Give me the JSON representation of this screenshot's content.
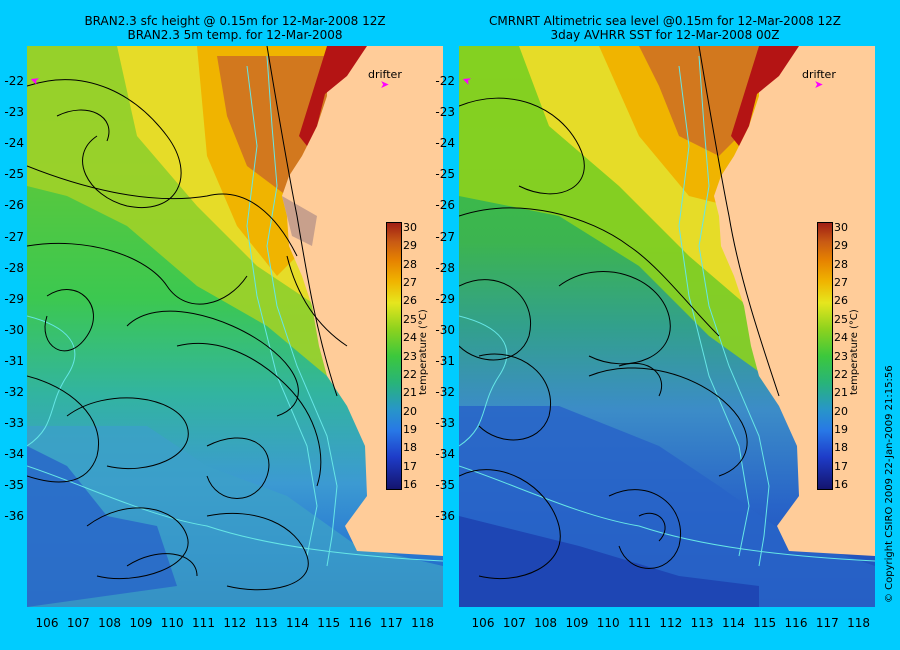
{
  "left_panel": {
    "title_line1": "BRAN2.3 sfc height @ 0.15m for 12-Mar-2008 12Z",
    "title_line2": "BRAN2.3 5m temp. for 12-Mar-2008"
  },
  "right_panel": {
    "title_line1": "CMRNRT Altimetric sea level  @0.15m  for 12-Mar-2008 12Z",
    "title_line2": "3day AVHRR SST for 12-Mar-2008 00Z"
  },
  "latitude_ticks": [
    "-22",
    "-23",
    "-24",
    "-25",
    "-26",
    "-27",
    "-28",
    "-29",
    "-30",
    "-31",
    "-32",
    "-33",
    "-34",
    "-35",
    "-36"
  ],
  "longitude_ticks": [
    "106",
    "107",
    "108",
    "109",
    "110",
    "111",
    "112",
    "113",
    "114",
    "115",
    "116",
    "117",
    "118"
  ],
  "colorbar": {
    "label": "temperature (°C)",
    "ticks": [
      "30",
      "29",
      "28",
      "27",
      "26",
      "25",
      "24",
      "23",
      "22",
      "21",
      "20",
      "19",
      "18",
      "17",
      "16"
    ],
    "range": [
      16,
      30
    ]
  },
  "drifter_label": "drifter",
  "drifter_marker": "➤",
  "copyright": "© Copyright CSIRO 2009   22-Jan-2009 21:15:56",
  "colors": {
    "background": "#00ccff",
    "land": "#ffcc99",
    "contour": "#000000",
    "bathymetry": "#66e6e6",
    "drifter": "#ff00ff"
  }
}
